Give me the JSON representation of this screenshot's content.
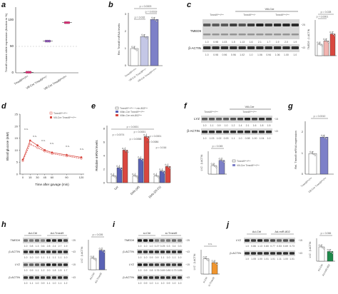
{
  "panels": {
    "a": {
      "letter": "a",
      "ylabel": "Tmed9 mutant allele expression (fraction in %)",
      "yticks": [
        "0",
        "50",
        "100"
      ],
      "categories": [
        "Tmed9ᶠˡᵒˣ/ᶠˡᵒˣ",
        "Vill-Cre Tmed9ᶠˡᵒˣ/⁺",
        "Vill-Cre Tmed9ᶠˡᵒˣ/ᶠˡᵒˣ"
      ]
    },
    "b": {
      "letter": "b",
      "ylabel": "Rel. Tmed9 mRNA levels",
      "yticks": [
        "0",
        "1",
        "2",
        "3"
      ],
      "categories": [
        "Tmed9ᶠˡᵒˣ/ᶠˡᵒˣ",
        "Vill-Cre Tmed9ᶠˡᵒˣ/⁺",
        "Vill-Cre Tmed9ᶠˡᵒˣ/ᶠˡᵒˣ"
      ],
      "pvals": [
        "p = 0.0003",
        "p = 0.0019",
        "p = 0.032"
      ]
    },
    "c": {
      "letter": "c",
      "group_label": "Vill-Cre",
      "lanes": [
        "Tmed9ᶠˡᵒˣ/ᶠˡᵒˣ",
        "Tmed9ᶠˡᵒˣ/⁺",
        "Tmed9ᶠˡᵒˣ/ᶠˡᵒˣ"
      ],
      "blot1": "TMED9",
      "blot2": "β-ACTIN",
      "kda1": "−25",
      "kda2": "−43",
      "quant1": [
        "1.0",
        "0.98",
        "1.03",
        "1.5",
        "1.13",
        "1.6",
        "2.1",
        "1.7",
        "1.9",
        "2.0",
        "1.9"
      ],
      "quant2": [
        "1.0",
        "0.98",
        "0.96",
        "0.96",
        "1.02",
        "1.0",
        "1.06",
        "0.94",
        "1.06",
        "1.00",
        "1.0"
      ],
      "bar_ylabel": "TMED9 : β-ACTIN",
      "bar_pvals": [
        "p = 0.028",
        "p = 0.0001"
      ]
    },
    "d": {
      "letter": "d",
      "ylabel": "Blood glucose (mM)",
      "xlabel": "Time after gavage (min)",
      "xticks": [
        "0",
        "15",
        "30",
        "45",
        "60",
        "90",
        "120"
      ],
      "yticks": [
        "0",
        "5",
        "10",
        "15",
        "20",
        "25"
      ],
      "legend": [
        "Tmed9ᶠˡᵒˣ/ᶠˡᵒˣ",
        "Vill-Cre Tmed9ᶠˡᵒˣ/ᶠˡᵒˣ"
      ],
      "ns": "n.s."
    },
    "e": {
      "letter": "e",
      "ylabel": "Relative mRNA levels",
      "legend": [
        "Tmed9ᶠˡᵒˣ/ᶠˡᵒˣ + mir-802ᶠˡᵒˣ",
        "Villin-Cre Tmed9ᶠˡᵒˣ/ᶠˡᵒˣ",
        "Villin-Cre mir-802ᶠˡᵒˣ"
      ],
      "groups": [
        "Lyz",
        "Defa (all)",
        "Defa (20-21)"
      ],
      "pvals": [
        "p < 0.0001",
        "p = 0.0074",
        "p < 0.0001",
        "p = 0.0058",
        "p = 0.0086",
        "p = 0.016",
        "p < 0.0001",
        "n.s."
      ],
      "yticks": [
        "0",
        "2",
        "4",
        "6",
        "8"
      ]
    },
    "f": {
      "letter": "f",
      "group_label": "Vill-Cre",
      "lanes": [
        "Tmed9ᶠˡᵒˣ/ᶠˡᵒˣ",
        "Tmed9ᶠˡᵒˣ/ᶠˡᵒˣ"
      ],
      "blot1": "LYZ",
      "blot2": "β-ACTIN",
      "kda1": "−15",
      "kda2": "−43",
      "quant1": [
        "1.0",
        "1.1",
        "0.9",
        "1.0",
        "1.2",
        "1.4",
        "2.1",
        "1.6",
        "1.8",
        "1.5"
      ],
      "quant2": [
        "1.0",
        "1.03",
        "1.02",
        "0.93",
        "1.1",
        "1.0",
        "0.98",
        "1.00",
        "1.04",
        "1.0"
      ],
      "bar_ylabel": "LYZ : β-ACTIN",
      "bar_pval": "p = 0.045",
      "legend": [
        "Tmed9ᶠˡᵒˣ/ᶠˡᵒˣ",
        "Vill-Cre Tmed9ᶠˡᵒˣ/ᶠˡᵒˣ"
      ]
    },
    "g": {
      "letter": "g",
      "ylabel": "Rel. Tmed9 mRNA expression",
      "pval": "p = 0.0010",
      "yticks": [
        "0",
        "1",
        "2"
      ],
      "categories": [
        "Tmed9ᶠˡᵒˣ/ᶠˡᵒˣ",
        "Vill-Cre Tmed9ᶠˡᵒˣ/ᶠˡᵒˣ"
      ]
    },
    "h": {
      "letter": "h",
      "lanes": [
        "Ad-Ctrl",
        "Ad-Tmed9"
      ],
      "blots": [
        "TMED9",
        "β-ACTIN",
        "LYZ",
        "β-ACTIN"
      ],
      "kdas": [
        "−25",
        "−43",
        "−15",
        "−43"
      ],
      "quants": [
        [
          "1.0",
          "0.8",
          "1.3",
          "0.6",
          "2.8",
          "2.4",
          "2.7",
          "1.9"
        ],
        [
          "1.0",
          "1.0",
          "1.0",
          "1.1",
          "1.1",
          "1.1",
          "1.1",
          "1.0"
        ],
        [
          "1.0",
          "0.9",
          "1.1",
          "1.2",
          "2.0",
          "1.8",
          "1.5",
          "1.7"
        ],
        [
          "1.0",
          "1.1",
          "1.0",
          "0.9",
          "1.1",
          "1.0",
          "1.1",
          "1.2"
        ]
      ],
      "bar_ylabel": "LYZ : β-ACTIN",
      "bar_pval": "p = 0.026",
      "bar_cats": [
        "Ad-Ctrl",
        "Ad-Tmed9"
      ]
    },
    "i": {
      "letter": "i",
      "lanes": [
        "si-Ctrl",
        "si-Tmed9"
      ],
      "blots": [
        "TMED9",
        "β-ACTIN",
        "LYZ",
        "β-ACTIN"
      ],
      "kdas": [
        "−25",
        "−43",
        "−15",
        "−43"
      ],
      "quants": [
        [
          "1.0",
          "1.0",
          "1.0",
          "0.27",
          "0.25",
          "0.3",
          "0.4",
          "0.3"
        ],
        [
          "1.0",
          "1.0",
          "0.9",
          "0.9",
          "1.1",
          "1.0",
          "1.1",
          "1.0"
        ],
        [
          "1.0",
          "0.9",
          "0.8",
          "0.76",
          "0.69",
          "0.80",
          "0.73",
          "0.85"
        ],
        [
          "1.0",
          "0.9",
          "1.0",
          "1.1",
          "1.0",
          "0.9",
          "1.0",
          "1.0"
        ]
      ],
      "bar_ylabel": "LYZ : β-ACTIN",
      "bar_pval": "n.s.",
      "bar_cats": [
        "si-Ctrl",
        "si-Tmed9"
      ]
    },
    "j": {
      "letter": "j",
      "lanes": [
        "Ad-Ctrl",
        "Ad-miR-802"
      ],
      "blots": [
        "LYZ",
        "β-ACTIN"
      ],
      "kdas": [
        "−15",
        "−43"
      ],
      "quants": [
        [
          "1.0",
          "0.86",
          "1.13",
          "0.80",
          "0.77",
          "0.53",
          "0.69",
          "0.73"
        ],
        [
          "1.0",
          "1.05",
          "1.00",
          "1.01",
          "1.01",
          "1.11",
          "1.00",
          "1.01"
        ]
      ],
      "bar_ylabel": "LYZ : β-ACTIN",
      "bar_pval": "p = 0.066",
      "bar_cats": [
        "Ad-Ctrl",
        "Ad-miR-802"
      ]
    }
  },
  "colors": {
    "ctrl": "#ffffff",
    "ko_light": "#c4c7e6",
    "ko": "#7d80c8",
    "red": "#d9473f",
    "pink": "#ec2d7b",
    "orange": "#f0952e",
    "green": "#1e8a4a",
    "blue": "#5a62b5",
    "grey": "#9a9a9a"
  },
  "chart_data": [
    {
      "type": "scatter",
      "panel": "a",
      "categories": [
        "Tmed9 flox/flox",
        "Vill-Cre Tmed9 flox/+",
        "Vill-Cre Tmed9 flox/flox"
      ],
      "values": [
        1,
        60,
        95
      ],
      "ylim": [
        0,
        100
      ]
    },
    {
      "type": "bar",
      "panel": "b",
      "categories": [
        "Tmed9 flox/flox",
        "Vill-Cre Tmed9 flox/+",
        "Vill-Cre Tmed9 flox/flox"
      ],
      "values": [
        1.0,
        1.7,
        2.7
      ],
      "ylim": [
        0,
        3
      ]
    },
    {
      "type": "bar",
      "panel": "c",
      "categories": [
        "Tmed9 flox/flox",
        "Vill-Cre Tmed9 flox/+",
        "Vill-Cre Tmed9 flox/flox"
      ],
      "values": [
        1.0,
        1.3,
        1.9
      ],
      "ylim": [
        0,
        3
      ]
    },
    {
      "type": "line",
      "panel": "d",
      "x": [
        0,
        15,
        30,
        45,
        60,
        90,
        120
      ],
      "series": [
        {
          "name": "Tmed9 flox/flox",
          "values": [
            5.5,
            12.5,
            11,
            9.5,
            8.5,
            7.5,
            6.5
          ]
        },
        {
          "name": "Vill-Cre Tmed9 flox/flox",
          "values": [
            6,
            14,
            12,
            10,
            9,
            8,
            7
          ]
        }
      ],
      "ylim": [
        0,
        25
      ]
    },
    {
      "type": "bar",
      "panel": "e",
      "categories": [
        "Lyz",
        "Defa (all)",
        "Defa (20-21)"
      ],
      "series": [
        {
          "name": "Tmed9 flox/flox + mir-802 flox",
          "values": [
            1.0,
            1.0,
            1.0
          ]
        },
        {
          "name": "Villin-Cre Tmed9 flox/flox",
          "values": [
            2.2,
            3.5,
            1.7
          ]
        },
        {
          "name": "Villin-Cre mir-802 flox",
          "values": [
            4.8,
            6.8,
            2.4
          ]
        }
      ],
      "ylim": [
        0,
        8
      ]
    },
    {
      "type": "bar",
      "panel": "f",
      "categories": [
        "Tmed9 flox/flox",
        "Vill-Cre Tmed9 flox/flox"
      ],
      "values": [
        1.0,
        1.6
      ],
      "ylim": [
        0,
        2.5
      ]
    },
    {
      "type": "bar",
      "panel": "g",
      "categories": [
        "Tmed9 flox/flox",
        "Vill-Cre Tmed9 flox/flox"
      ],
      "values": [
        1.0,
        1.8
      ],
      "ylim": [
        0,
        2.5
      ]
    },
    {
      "type": "bar",
      "panel": "h",
      "categories": [
        "Ad-Ctrl",
        "Ad-Tmed9"
      ],
      "values": [
        1.0,
        1.7
      ],
      "ylim": [
        0,
        2.5
      ]
    },
    {
      "type": "bar",
      "panel": "i",
      "categories": [
        "si-Ctrl",
        "si-Tmed9"
      ],
      "values": [
        1.0,
        0.75
      ],
      "ylim": [
        0,
        1.5
      ]
    },
    {
      "type": "bar",
      "panel": "j",
      "categories": [
        "Ad-Ctrl",
        "Ad-miR-802"
      ],
      "values": [
        1.0,
        0.68
      ],
      "ylim": [
        0,
        1.5
      ]
    }
  ]
}
